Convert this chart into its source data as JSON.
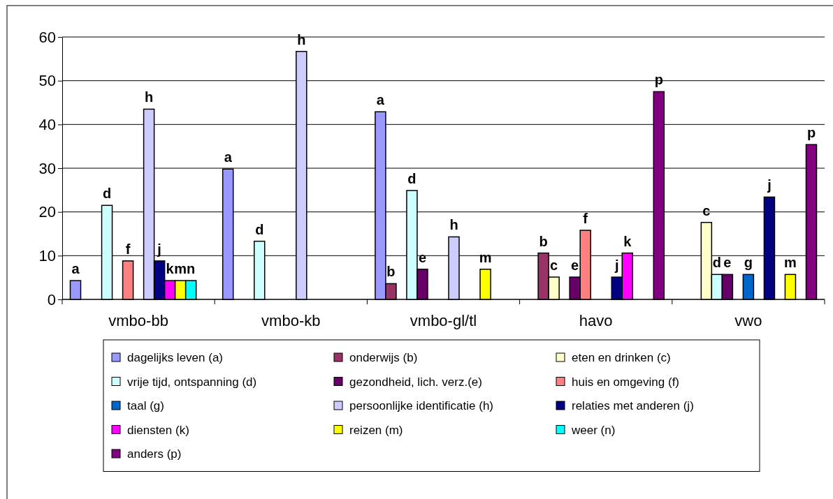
{
  "chart_data": {
    "type": "bar",
    "categories": [
      "vmbo-bb",
      "vmbo-kb",
      "vmbo-gl/tl",
      "havo",
      "vwo"
    ],
    "ylim": [
      0,
      60
    ],
    "yticks": [
      0,
      10,
      20,
      30,
      40,
      50,
      60
    ],
    "grid": "y",
    "legend": "bottom",
    "series": [
      {
        "name": "dagelijks leven (a)",
        "color": "#9999ff",
        "values": [
          4.3,
          29.8,
          42.9,
          null,
          null
        ],
        "value_labels": [
          "a",
          "a",
          "a",
          null,
          null
        ]
      },
      {
        "name": "onderwijs (b)",
        "color": "#993366",
        "values": [
          null,
          null,
          3.6,
          10.6,
          null
        ],
        "value_labels": [
          null,
          null,
          "b",
          "b",
          null
        ]
      },
      {
        "name": "eten en drinken (c)",
        "color": "#ffffcc",
        "values": [
          null,
          null,
          null,
          5.1,
          17.6
        ],
        "value_labels": [
          null,
          null,
          null,
          "c",
          "c"
        ]
      },
      {
        "name": "vrije tijd, ontspanning (d)",
        "color": "#ccffff",
        "values": [
          21.5,
          13.3,
          24.9,
          null,
          5.7
        ],
        "value_labels": [
          "d",
          "d",
          "d",
          null,
          "d"
        ]
      },
      {
        "name": "gezondheid, lich. verz.(e)",
        "color": "#660066",
        "values": [
          null,
          null,
          6.9,
          5.1,
          5.7
        ],
        "value_labels": [
          null,
          null,
          "e",
          "e",
          "e"
        ]
      },
      {
        "name": "huis en omgeving (f)",
        "color": "#ff8080",
        "values": [
          8.8,
          null,
          null,
          15.8,
          null
        ],
        "value_labels": [
          "f",
          null,
          null,
          "f",
          null
        ]
      },
      {
        "name": "taal (g)",
        "color": "#0066cc",
        "values": [
          null,
          null,
          null,
          null,
          5.7
        ],
        "value_labels": [
          null,
          null,
          null,
          null,
          "g"
        ]
      },
      {
        "name": "persoonlijke identificatie (h)",
        "color": "#ccccff",
        "values": [
          43.5,
          56.7,
          14.3,
          null,
          null
        ],
        "value_labels": [
          "h",
          "h",
          "h",
          null,
          null
        ]
      },
      {
        "name": "relaties met anderen (j)",
        "color": "#000080",
        "values": [
          8.8,
          null,
          null,
          5.1,
          23.4
        ],
        "value_labels": [
          "j",
          null,
          null,
          "j",
          "j"
        ]
      },
      {
        "name": "diensten (k)",
        "color": "#ff00ff",
        "values": [
          4.3,
          null,
          null,
          10.6,
          null
        ],
        "value_labels": [
          "k",
          null,
          null,
          "k",
          null
        ]
      },
      {
        "name": "reizen (m)",
        "color": "#ffff00",
        "values": [
          4.3,
          null,
          6.9,
          null,
          5.7
        ],
        "value_labels": [
          "m",
          null,
          "m",
          null,
          "m"
        ]
      },
      {
        "name": "weer (n)",
        "color": "#00ffff",
        "values": [
          4.3,
          null,
          null,
          null,
          null
        ],
        "value_labels": [
          "n",
          null,
          null,
          null,
          null
        ]
      },
      {
        "name": "anders (p)",
        "color": "#800080",
        "values": [
          null,
          null,
          null,
          47.5,
          35.4
        ],
        "value_labels": [
          null,
          null,
          null,
          "p",
          "p"
        ]
      }
    ]
  }
}
